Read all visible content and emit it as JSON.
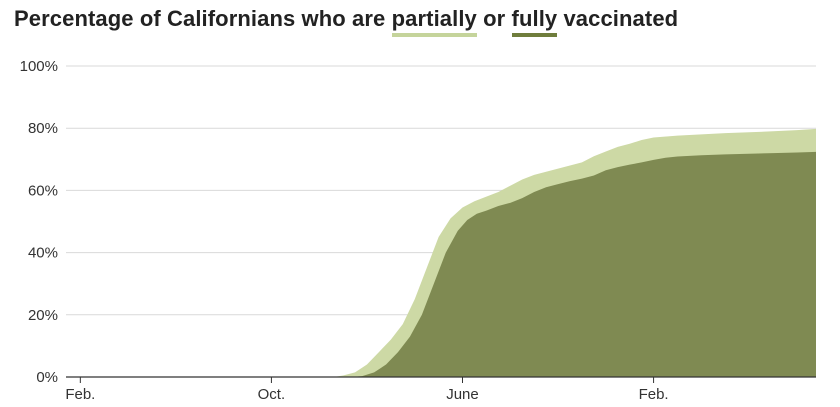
{
  "chart_data": {
    "type": "area",
    "title_parts": [
      {
        "text": "Percentage of Californians who are ",
        "role": "plain"
      },
      {
        "text": "partially",
        "role": "partial"
      },
      {
        "text": " or ",
        "role": "plain"
      },
      {
        "text": "fully",
        "role": "full"
      },
      {
        "text": " vaccinated",
        "role": "plain"
      }
    ],
    "y_ticks": [
      "0%",
      "20%",
      "40%",
      "60%",
      "80%",
      "100%"
    ],
    "ylim": [
      0,
      100
    ],
    "x_ticks": [
      {
        "label": "Feb.",
        "month": 0
      },
      {
        "label": "Oct.",
        "month": 8
      },
      {
        "label": "June",
        "month": 16
      },
      {
        "label": "Feb.",
        "month": 24
      }
    ],
    "xlim_months": [
      -0.6,
      30.8
    ],
    "grid": true,
    "colors": {
      "partial": "#cdd9a5",
      "full": "#7f8a52",
      "grid": "#d9d9d9",
      "axis": "#333333"
    },
    "series": [
      {
        "key": "partial",
        "points": [
          [
            10.6,
            0
          ],
          [
            11.0,
            0.5
          ],
          [
            11.5,
            1.5
          ],
          [
            12.0,
            4
          ],
          [
            12.5,
            8
          ],
          [
            13.0,
            12
          ],
          [
            13.5,
            17
          ],
          [
            14.0,
            25
          ],
          [
            14.5,
            35
          ],
          [
            15.0,
            45
          ],
          [
            15.5,
            51
          ],
          [
            16.0,
            54.5
          ],
          [
            16.5,
            56.5
          ],
          [
            17.0,
            58
          ],
          [
            17.5,
            59.5
          ],
          [
            18.0,
            61.5
          ],
          [
            18.5,
            63.5
          ],
          [
            19.0,
            65
          ],
          [
            19.5,
            66
          ],
          [
            20.0,
            67
          ],
          [
            20.5,
            68
          ],
          [
            21.0,
            69
          ],
          [
            21.5,
            71
          ],
          [
            22.0,
            72.5
          ],
          [
            22.5,
            74
          ],
          [
            23.0,
            75
          ],
          [
            23.5,
            76.2
          ],
          [
            24.0,
            77
          ],
          [
            25.0,
            77.6
          ],
          [
            26.0,
            78
          ],
          [
            27.0,
            78.4
          ],
          [
            28.0,
            78.7
          ],
          [
            29.0,
            79
          ],
          [
            30.0,
            79.4
          ],
          [
            30.8,
            79.8
          ]
        ]
      },
      {
        "key": "full",
        "points": [
          [
            11.3,
            0
          ],
          [
            11.8,
            0.3
          ],
          [
            12.3,
            1.5
          ],
          [
            12.8,
            4
          ],
          [
            13.3,
            8
          ],
          [
            13.8,
            13
          ],
          [
            14.3,
            20
          ],
          [
            14.8,
            30
          ],
          [
            15.3,
            40
          ],
          [
            15.8,
            47
          ],
          [
            16.2,
            50.5
          ],
          [
            16.6,
            52.5
          ],
          [
            17.0,
            53.5
          ],
          [
            17.5,
            55
          ],
          [
            18.0,
            56
          ],
          [
            18.5,
            57.5
          ],
          [
            19.0,
            59.5
          ],
          [
            19.5,
            61
          ],
          [
            20.0,
            62
          ],
          [
            20.5,
            63
          ],
          [
            21.0,
            63.8
          ],
          [
            21.5,
            64.8
          ],
          [
            22.0,
            66.5
          ],
          [
            22.5,
            67.5
          ],
          [
            23.0,
            68.3
          ],
          [
            23.5,
            69
          ],
          [
            24.0,
            69.8
          ],
          [
            24.5,
            70.5
          ],
          [
            25.0,
            70.9
          ],
          [
            26.0,
            71.3
          ],
          [
            27.0,
            71.6
          ],
          [
            28.0,
            71.8
          ],
          [
            29.0,
            72
          ],
          [
            30.0,
            72.2
          ],
          [
            30.8,
            72.4
          ]
        ]
      }
    ]
  }
}
